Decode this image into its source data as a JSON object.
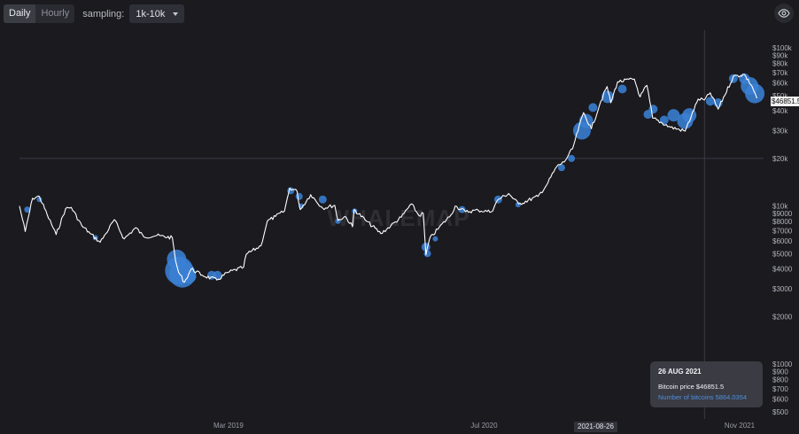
{
  "toolbar": {
    "tabs": [
      {
        "label": "Daily",
        "active": true
      },
      {
        "label": "Hourly",
        "active": false
      }
    ],
    "sampling_label": "sampling:",
    "sampling_value": "1k-10k",
    "eye_icon": "eye-icon"
  },
  "watermark": "WHALEMAP",
  "colors": {
    "background": "#1a1a1f",
    "price_line": "#ffffff",
    "bubble": "#3a7fd4",
    "accent_text": "#4d8fe0"
  },
  "crosshair": {
    "date_label": "2021-08-26",
    "price_label": "$46851.5"
  },
  "tooltip": {
    "date": "26 AUG 2021",
    "price_text": "Bitcoin price $46851.5",
    "bitcoins_text": "Number of bitcoins 5864.0354"
  },
  "chart_data": {
    "type": "line",
    "y_scale": "log",
    "ylim": [
      450,
      120000
    ],
    "xlim": [
      "2018-01-26",
      "2021-12-10"
    ],
    "grid": false,
    "y_ticks": [
      {
        "value": 100000,
        "label": "$100k"
      },
      {
        "value": 90000,
        "label": "$90k"
      },
      {
        "value": 80000,
        "label": "$80k"
      },
      {
        "value": 70000,
        "label": "$70k"
      },
      {
        "value": 60000,
        "label": "$60k"
      },
      {
        "value": 50000,
        "label": "$50k"
      },
      {
        "value": 40000,
        "label": "$40k"
      },
      {
        "value": 30000,
        "label": "$30k"
      },
      {
        "value": 20000,
        "label": "$20k"
      },
      {
        "value": 10000,
        "label": "$10k"
      },
      {
        "value": 9000,
        "label": "$9000"
      },
      {
        "value": 8000,
        "label": "$8000"
      },
      {
        "value": 7000,
        "label": "$7000"
      },
      {
        "value": 6000,
        "label": "$6000"
      },
      {
        "value": 5000,
        "label": "$5000"
      },
      {
        "value": 4000,
        "label": "$4000"
      },
      {
        "value": 3000,
        "label": "$3000"
      },
      {
        "value": 2000,
        "label": "$2000"
      },
      {
        "value": 1000,
        "label": "$1000"
      },
      {
        "value": 900,
        "label": "$900"
      },
      {
        "value": 800,
        "label": "$800"
      },
      {
        "value": 700,
        "label": "$700"
      },
      {
        "value": 600,
        "label": "$600"
      },
      {
        "value": 500,
        "label": "$500"
      }
    ],
    "x_ticks": [
      {
        "value": "2019-03-01",
        "label": "Mar 2019"
      },
      {
        "value": "2020-07-01",
        "label": "Jul 2020"
      },
      {
        "value": "2021-11-01",
        "label": "Nov 2021"
      }
    ],
    "reference_lines": [
      {
        "axis": "y",
        "value": 20000
      },
      {
        "axis": "x",
        "value": "2021-08-26"
      }
    ],
    "series": [
      {
        "type": "line",
        "points": [
          [
            "2018-01-26",
            10000
          ],
          [
            "2018-02-06",
            6900
          ],
          [
            "2018-02-20",
            11200
          ],
          [
            "2018-03-05",
            11500
          ],
          [
            "2018-03-20",
            8800
          ],
          [
            "2018-04-06",
            6600
          ],
          [
            "2018-04-24",
            9600
          ],
          [
            "2018-05-05",
            9800
          ],
          [
            "2018-05-25",
            7500
          ],
          [
            "2018-06-10",
            6700
          ],
          [
            "2018-06-29",
            5900
          ],
          [
            "2018-07-10",
            6700
          ],
          [
            "2018-07-26",
            8200
          ],
          [
            "2018-08-14",
            6200
          ],
          [
            "2018-09-05",
            7300
          ],
          [
            "2018-09-20",
            6400
          ],
          [
            "2018-10-15",
            6500
          ],
          [
            "2018-11-14",
            6300
          ],
          [
            "2018-11-20",
            4500
          ],
          [
            "2018-11-26",
            3800
          ],
          [
            "2018-12-07",
            3300
          ],
          [
            "2018-12-20",
            4000
          ],
          [
            "2019-01-10",
            3650
          ],
          [
            "2019-02-07",
            3400
          ],
          [
            "2019-02-28",
            3800
          ],
          [
            "2019-03-30",
            4100
          ],
          [
            "2019-04-04",
            4950
          ],
          [
            "2019-05-02",
            5600
          ],
          [
            "2019-05-14",
            8000
          ],
          [
            "2019-05-30",
            8600
          ],
          [
            "2019-06-16",
            9300
          ],
          [
            "2019-06-26",
            13000
          ],
          [
            "2019-07-10",
            12400
          ],
          [
            "2019-07-16",
            9500
          ],
          [
            "2019-08-05",
            11800
          ],
          [
            "2019-08-28",
            9700
          ],
          [
            "2019-09-20",
            10100
          ],
          [
            "2019-09-26",
            8100
          ],
          [
            "2019-10-10",
            8600
          ],
          [
            "2019-10-24",
            7400
          ],
          [
            "2019-10-27",
            9500
          ],
          [
            "2019-11-20",
            8000
          ],
          [
            "2019-12-17",
            6700
          ],
          [
            "2020-01-05",
            7500
          ],
          [
            "2020-01-25",
            8500
          ],
          [
            "2020-02-13",
            10300
          ],
          [
            "2020-02-28",
            8700
          ],
          [
            "2020-03-07",
            9000
          ],
          [
            "2020-03-12",
            4900
          ],
          [
            "2020-03-19",
            6200
          ],
          [
            "2020-04-06",
            7300
          ],
          [
            "2020-04-29",
            8800
          ],
          [
            "2020-05-07",
            10000
          ],
          [
            "2020-05-27",
            9200
          ],
          [
            "2020-06-20",
            9400
          ],
          [
            "2020-07-15",
            9200
          ],
          [
            "2020-07-28",
            11000
          ],
          [
            "2020-08-17",
            12000
          ],
          [
            "2020-09-05",
            10300
          ],
          [
            "2020-10-12",
            11500
          ],
          [
            "2020-10-28",
            13500
          ],
          [
            "2020-11-17",
            17800
          ],
          [
            "2020-12-01",
            19000
          ],
          [
            "2020-12-17",
            23000
          ],
          [
            "2021-01-07",
            39000
          ],
          [
            "2021-01-22",
            30800
          ],
          [
            "2021-02-09",
            46000
          ],
          [
            "2021-02-21",
            57000
          ],
          [
            "2021-02-28",
            45000
          ],
          [
            "2021-03-13",
            61000
          ],
          [
            "2021-04-14",
            63500
          ],
          [
            "2021-04-25",
            49000
          ],
          [
            "2021-05-08",
            58000
          ],
          [
            "2021-05-19",
            36000
          ],
          [
            "2021-06-22",
            31500
          ],
          [
            "2021-07-20",
            29800
          ],
          [
            "2021-08-14",
            47500
          ],
          [
            "2021-08-26",
            46851.5
          ],
          [
            "2021-09-06",
            52000
          ],
          [
            "2021-09-21",
            41000
          ],
          [
            "2021-10-20",
            66000
          ],
          [
            "2021-11-10",
            68000
          ],
          [
            "2021-11-25",
            57000
          ],
          [
            "2021-12-04",
            48000
          ]
        ]
      },
      {
        "type": "bubbles",
        "points": [
          [
            "2018-02-10",
            9500,
            3.5
          ],
          [
            "2018-03-05",
            11000,
            3
          ],
          [
            "2018-06-20",
            6300,
            3
          ],
          [
            "2018-11-22",
            4600,
            11
          ],
          [
            "2018-11-27",
            3900,
            16
          ],
          [
            "2018-12-03",
            3700,
            15
          ],
          [
            "2018-12-16",
            3600,
            8
          ],
          [
            "2019-01-28",
            3650,
            5
          ],
          [
            "2019-02-08",
            3650,
            5
          ],
          [
            "2019-06-28",
            12500,
            4
          ],
          [
            "2019-07-14",
            11500,
            4
          ],
          [
            "2019-07-18",
            10000,
            3
          ],
          [
            "2019-08-28",
            11000,
            4.5
          ],
          [
            "2019-09-26",
            8000,
            3
          ],
          [
            "2019-10-28",
            9300,
            3
          ],
          [
            "2020-03-12",
            5500,
            5
          ],
          [
            "2020-03-15",
            5000,
            4
          ],
          [
            "2020-03-30",
            6200,
            3
          ],
          [
            "2020-05-20",
            9500,
            4
          ],
          [
            "2020-07-28",
            11000,
            4.5
          ],
          [
            "2020-09-04",
            10200,
            3
          ],
          [
            "2020-11-26",
            17500,
            4
          ],
          [
            "2020-12-15",
            20000,
            4
          ],
          [
            "2021-01-04",
            30000,
            10
          ],
          [
            "2021-01-12",
            34500,
            8
          ],
          [
            "2021-01-25",
            42000,
            5
          ],
          [
            "2021-02-22",
            49000,
            7
          ],
          [
            "2021-03-22",
            55000,
            5
          ],
          [
            "2021-05-10",
            38000,
            5
          ],
          [
            "2021-05-20",
            41000,
            5
          ],
          [
            "2021-06-10",
            35000,
            5
          ],
          [
            "2021-06-28",
            37500,
            7
          ],
          [
            "2021-07-20",
            34500,
            9
          ],
          [
            "2021-07-28",
            37500,
            8
          ],
          [
            "2021-09-06",
            46000,
            5
          ],
          [
            "2021-09-21",
            45000,
            5
          ],
          [
            "2021-10-20",
            64000,
            5
          ],
          [
            "2021-11-10",
            64000,
            6
          ],
          [
            "2021-11-20",
            57500,
            10
          ],
          [
            "2021-11-30",
            51500,
            11
          ]
        ]
      }
    ]
  }
}
